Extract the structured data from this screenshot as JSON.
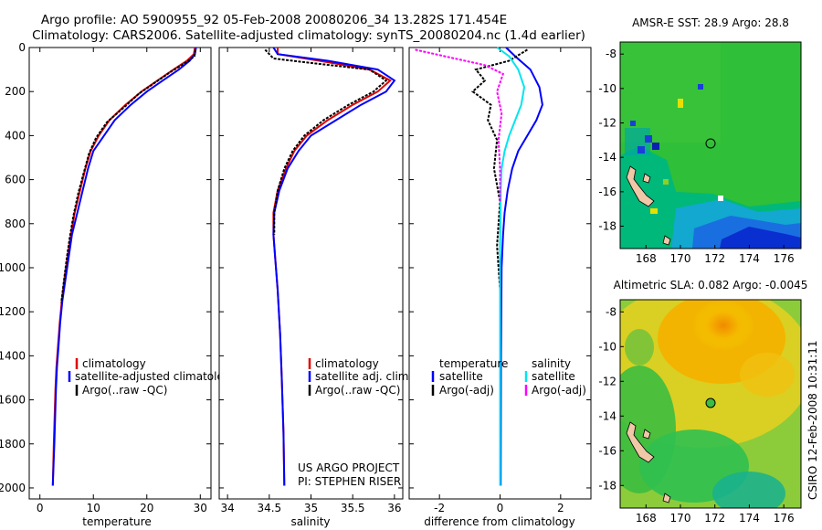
{
  "header": {
    "title_line1": "Argo profile: AO 5900955_92 05-Feb-2008 20080206_34 13.282S 171.454E",
    "title_line2": "Climatology: CARS2006. Satellite-adjusted climatology: synTS_20080204.nc (1.4d earlier)"
  },
  "colors": {
    "climatology": "#e00000",
    "satellite": "#0000ff",
    "argo": "#000000",
    "salinity_satellite": "#00e5ee",
    "salinity_argo": "#ff00ff"
  },
  "chart_data": [
    {
      "type": "line",
      "name": "temperature-profile",
      "xlabel": "temperature",
      "ylabel": "",
      "xlim": [
        -2,
        32
      ],
      "ylim": [
        2050,
        0
      ],
      "xticks": [
        "0",
        "10",
        "20",
        "30"
      ],
      "yticks": [
        "0",
        "200",
        "400",
        "600",
        "800",
        "1000",
        "1200",
        "1400",
        "1600",
        "1800",
        "2000"
      ],
      "legend": [
        "climatology",
        "satellite-adjusted climatology",
        "Argo(..raw -QC)"
      ],
      "series": [
        {
          "name": "climatology",
          "color": "#e00000",
          "x": [
            29.0,
            28.8,
            27.5,
            25,
            22,
            19,
            16,
            13,
            11,
            9.5,
            8.5,
            7.5,
            6.5,
            5.8,
            5.2,
            4.6,
            4.1,
            3.7,
            3.4,
            3.1,
            2.9,
            2.6,
            2.4
          ],
          "y": [
            0,
            30,
            60,
            100,
            150,
            200,
            260,
            330,
            400,
            470,
            550,
            650,
            750,
            850,
            950,
            1050,
            1150,
            1250,
            1350,
            1450,
            1550,
            1800,
            1990
          ]
        },
        {
          "name": "satellite",
          "color": "#0000ff",
          "x": [
            29.2,
            29.0,
            28.0,
            26,
            23,
            20,
            17,
            14,
            12,
            10,
            9,
            8,
            7,
            6,
            5.4,
            4.8,
            4.2,
            3.8,
            3.5,
            3.2,
            3.0,
            2.7,
            2.4
          ],
          "y": [
            0,
            30,
            60,
            100,
            150,
            200,
            260,
            330,
            400,
            470,
            550,
            650,
            750,
            850,
            950,
            1050,
            1150,
            1250,
            1350,
            1450,
            1550,
            1800,
            1990
          ]
        },
        {
          "name": "argo",
          "color": "#000000",
          "x": [
            29.1,
            28.9,
            27.2,
            24.5,
            21.5,
            18.5,
            15.8,
            12.5,
            10.5,
            9.2,
            8.3,
            7.2,
            6.3,
            5.6,
            5.0,
            4.5,
            4.0
          ],
          "y": [
            10,
            40,
            70,
            110,
            160,
            210,
            270,
            340,
            410,
            480,
            560,
            660,
            760,
            860,
            960,
            1060,
            1160
          ]
        }
      ]
    },
    {
      "type": "line",
      "name": "salinity-profile",
      "xlabel": "salinity",
      "ylabel": "",
      "xlim": [
        33.9,
        36.1
      ],
      "ylim": [
        2050,
        0
      ],
      "xticks": [
        "34",
        "34.5",
        "35",
        "35.5",
        "36"
      ],
      "legend": [
        "climatology",
        "satellite adj. clim.",
        "Argo(..raw -QC)"
      ],
      "annotation_line1": "US ARGO PROJECT",
      "annotation_line2": "PI: STEPHEN RISER",
      "series": [
        {
          "name": "climatology",
          "color": "#e00000",
          "x": [
            34.6,
            34.6,
            35.1,
            35.7,
            35.95,
            35.8,
            35.5,
            35.2,
            34.95,
            34.8,
            34.7,
            34.6,
            34.55,
            34.55,
            34.57,
            34.6,
            34.63,
            34.65,
            34.67,
            34.68
          ],
          "y": [
            0,
            30,
            60,
            100,
            150,
            200,
            260,
            330,
            400,
            470,
            550,
            650,
            750,
            850,
            950,
            1100,
            1300,
            1500,
            1750,
            1990
          ]
        },
        {
          "name": "satellite",
          "color": "#0000ff",
          "x": [
            34.55,
            34.6,
            35.2,
            35.8,
            36.0,
            35.9,
            35.6,
            35.3,
            35.0,
            34.85,
            34.72,
            34.62,
            34.56,
            34.55,
            34.57,
            34.6,
            34.63,
            34.65,
            34.67,
            34.68
          ],
          "y": [
            0,
            30,
            60,
            100,
            150,
            200,
            260,
            330,
            400,
            470,
            550,
            650,
            750,
            850,
            950,
            1100,
            1300,
            1500,
            1750,
            1990
          ]
        },
        {
          "name": "argo",
          "color": "#000000",
          "x": [
            34.45,
            34.5,
            34.55,
            35.0,
            35.7,
            35.9,
            35.75,
            35.45,
            35.15,
            34.92,
            34.78,
            34.68,
            34.6,
            34.56,
            34.56
          ],
          "y": [
            10,
            30,
            50,
            70,
            100,
            150,
            200,
            260,
            330,
            400,
            470,
            550,
            650,
            750,
            850
          ]
        }
      ]
    },
    {
      "type": "line",
      "name": "difference-profile",
      "xlabel": "difference from climatology",
      "ylabel": "",
      "xlim": [
        -3.0,
        3.0
      ],
      "ylim": [
        2050,
        0
      ],
      "xticks": [
        "-2",
        "0",
        "2"
      ],
      "legend_left_title": "temperature",
      "legend_left": [
        "satellite",
        "Argo(-adj)"
      ],
      "legend_right_title": "salinity",
      "legend_right": [
        "satellite",
        "Argo(-adj)"
      ],
      "series": [
        {
          "name": "temperature satellite",
          "color": "#0000ff",
          "x": [
            0.2,
            0.5,
            1.0,
            1.3,
            1.4,
            1.2,
            0.9,
            0.6,
            0.4,
            0.25,
            0.15,
            0.1,
            0.05,
            0.03,
            0.02
          ],
          "y": [
            0,
            40,
            100,
            180,
            260,
            330,
            400,
            470,
            550,
            650,
            750,
            850,
            1000,
            1400,
            1990
          ]
        },
        {
          "name": "temperature argo",
          "color": "#000000",
          "x": [
            0.9,
            0.3,
            -0.8,
            -0.5,
            -0.9,
            -0.3,
            -0.4,
            -0.1,
            -0.2,
            0.0,
            -0.1,
            0.0
          ],
          "y": [
            10,
            60,
            100,
            150,
            200,
            260,
            330,
            420,
            550,
            700,
            900,
            1100
          ]
        },
        {
          "name": "salinity satellite",
          "color": "#00e5ee",
          "x": [
            -0.1,
            0.3,
            0.6,
            0.8,
            0.7,
            0.5,
            0.3,
            0.15,
            0.05,
            0.02,
            0.0,
            0.0
          ],
          "y": [
            0,
            40,
            100,
            180,
            260,
            330,
            400,
            470,
            550,
            650,
            900,
            1990
          ]
        },
        {
          "name": "salinity argo",
          "color": "#ff00ff",
          "x": [
            -2.8,
            -1.5,
            -0.5,
            0.1,
            -0.1,
            0.05,
            -0.05,
            0.0,
            0.0
          ],
          "y": [
            10,
            50,
            80,
            120,
            200,
            300,
            420,
            550,
            700
          ]
        }
      ]
    },
    {
      "type": "heatmap",
      "name": "amsr-sst-map",
      "title": "AMSR-E SST: 28.9 Argo: 28.8",
      "xticks": [
        "168",
        "170",
        "172",
        "174",
        "176"
      ],
      "yticks": [
        "-8",
        "-10",
        "-12",
        "-14",
        "-16",
        "-18"
      ],
      "xlim": [
        166.5,
        177
      ],
      "ylim": [
        -19.3,
        -7.3
      ],
      "argo_position": [
        171.45,
        -13.28
      ]
    },
    {
      "type": "heatmap",
      "name": "altimetric-sla-map",
      "title": "Altimetric SLA: 0.082 Argo: -0.0045",
      "xticks": [
        "168",
        "170",
        "172",
        "174",
        "176"
      ],
      "yticks": [
        "-8",
        "-10",
        "-12",
        "-14",
        "-16",
        "-18"
      ],
      "xlim": [
        166.5,
        177
      ],
      "ylim": [
        -19.3,
        -7.3
      ],
      "argo_position": [
        171.45,
        -13.28
      ]
    }
  ],
  "footer": {
    "credit": "CSIRO 12-Feb-2008 10:31:11"
  }
}
